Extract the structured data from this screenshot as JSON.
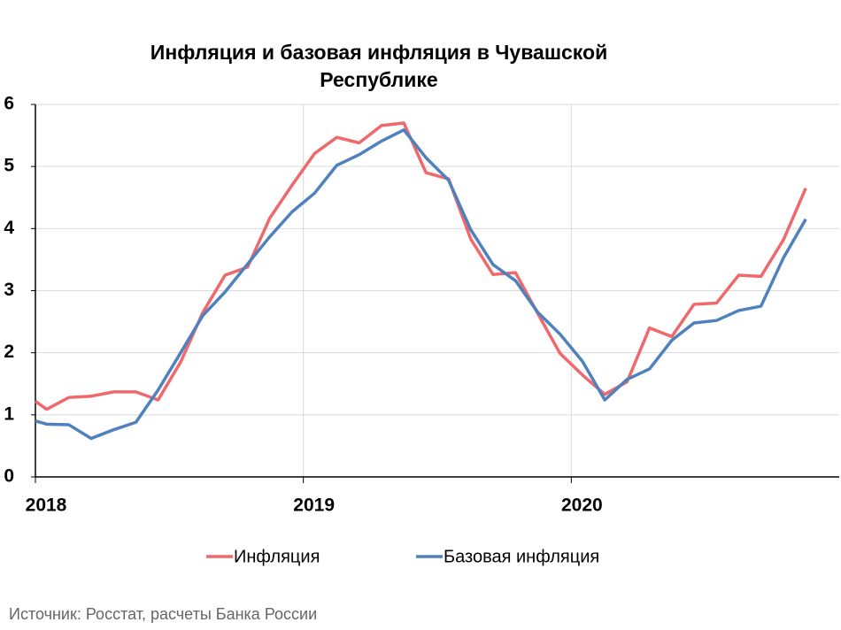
{
  "chart_data": {
    "type": "line",
    "title": "Инфляция и базовая инфляция в Чувашской Республике",
    "source": "Источник: Росстат, расчеты Банка России",
    "x": [
      2018,
      2018.042,
      2018.125,
      2018.208,
      2018.292,
      2018.375,
      2018.458,
      2018.542,
      2018.625,
      2018.708,
      2018.792,
      2018.875,
      2018.958,
      2019.042,
      2019.125,
      2019.208,
      2019.292,
      2019.375,
      2019.458,
      2019.542,
      2019.625,
      2019.708,
      2019.792,
      2019.875,
      2019.958,
      2020.042,
      2020.125,
      2020.208,
      2020.292,
      2020.375,
      2020.458,
      2020.542,
      2020.625,
      2020.708,
      2020.792,
      2020.875
    ],
    "series": [
      {
        "name": "Инфляция",
        "color": "#f0686c",
        "values": [
          1.22,
          1.09,
          1.28,
          1.3,
          1.37,
          1.37,
          1.24,
          1.85,
          2.65,
          3.25,
          3.38,
          4.17,
          4.7,
          5.21,
          5.47,
          5.38,
          5.66,
          5.7,
          4.9,
          4.8,
          3.83,
          3.26,
          3.29,
          2.63,
          1.99,
          1.64,
          1.33,
          1.53,
          2.4,
          2.26,
          2.78,
          2.8,
          3.25,
          3.23,
          3.82,
          4.65
        ]
      },
      {
        "name": "Базовая инфляция",
        "color": "#4f81bd",
        "values": [
          0.9,
          0.85,
          0.84,
          0.62,
          0.76,
          0.88,
          1.4,
          2.0,
          2.6,
          2.98,
          3.43,
          3.87,
          4.27,
          4.57,
          5.02,
          5.19,
          5.41,
          5.59,
          5.14,
          4.78,
          3.98,
          3.42,
          3.16,
          2.65,
          2.3,
          1.86,
          1.24,
          1.57,
          1.74,
          2.2,
          2.48,
          2.52,
          2.68,
          2.75,
          3.53,
          4.15
        ]
      }
    ],
    "xlim": [
      2018,
      2021
    ],
    "xticks": [
      2018,
      2019,
      2020
    ],
    "ylim": [
      0,
      6
    ],
    "yticks": [
      0,
      1,
      2,
      3,
      4,
      5,
      6
    ],
    "grid": true,
    "legend": "bottom"
  }
}
